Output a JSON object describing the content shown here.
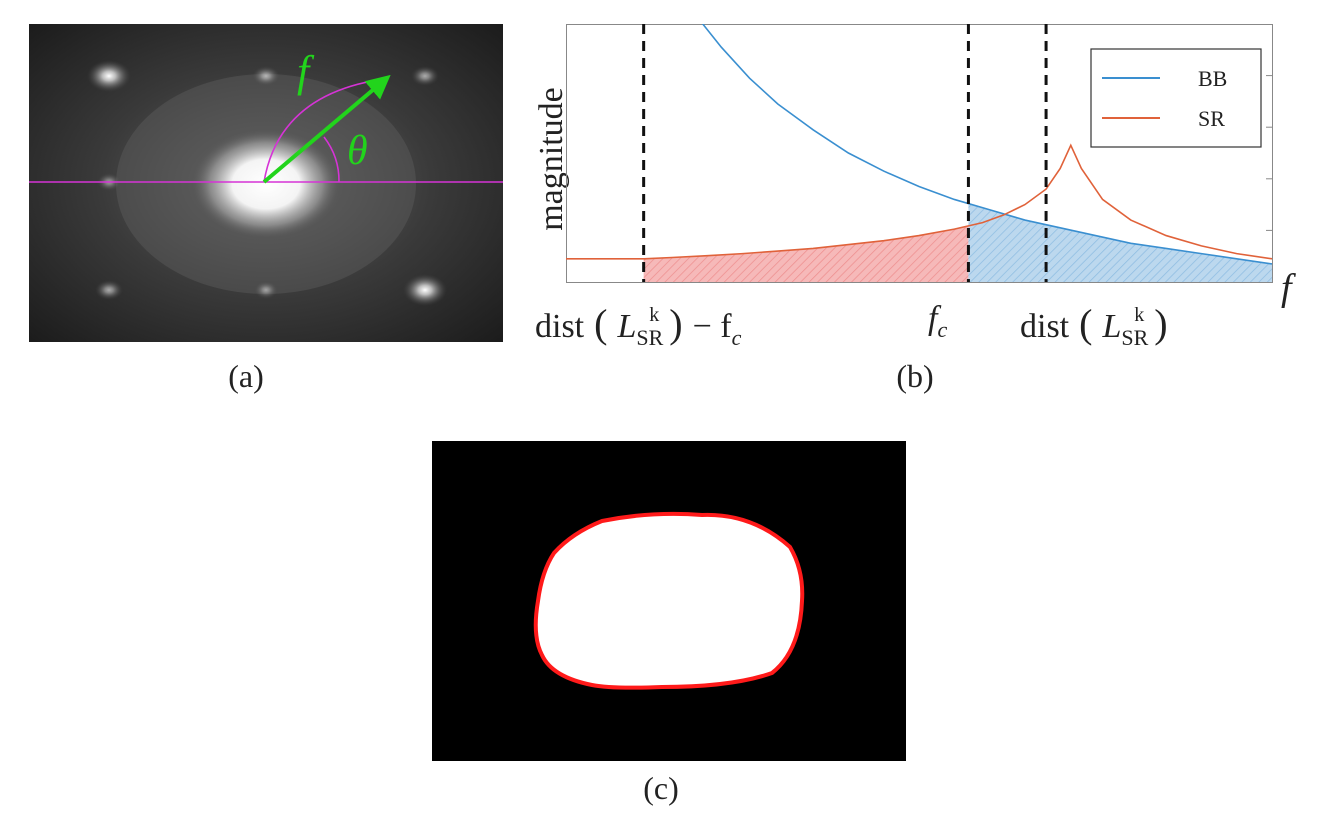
{
  "panels": {
    "a": {
      "caption": "(a)",
      "labels": {
        "frequency": "f",
        "angle": "θ"
      }
    },
    "b": {
      "caption": "(b)",
      "ylabel": "magnitude",
      "xlabel": "f",
      "xtick_left": {
        "prefix": "dist",
        "symbol": "L",
        "subscript": "SR",
        "superscript": "k",
        "suffix": "− f",
        "suffix_sub": "c"
      },
      "xtick_mid": {
        "symbol": "f",
        "subscript": "c"
      },
      "xtick_right": {
        "prefix": "dist",
        "symbol": "L",
        "subscript": "SR",
        "superscript": "k"
      }
    },
    "c": {
      "caption": "(c)"
    }
  },
  "colors": {
    "bb": "#3a8fd0",
    "sr": "#e0623a",
    "magenta": "#d633d6",
    "green": "#22d41c",
    "contour": "#ff1a1a"
  },
  "chart_data": {
    "type": "line",
    "title": "",
    "xlabel": "f",
    "ylabel": "magnitude",
    "xlim": [
      0,
      10
    ],
    "ylim": [
      0,
      10
    ],
    "series": [
      {
        "name": "BB",
        "color": "#3a8fd0",
        "x": [
          1.85,
          2.2,
          2.6,
          3.0,
          3.5,
          4.0,
          4.5,
          5.0,
          5.5,
          6.0,
          6.5,
          7.0,
          7.5,
          8.0,
          8.5,
          9.0,
          9.5,
          10.0
        ],
        "values": [
          10.5,
          9.1,
          7.9,
          6.9,
          5.9,
          5.0,
          4.3,
          3.7,
          3.2,
          2.8,
          2.4,
          2.1,
          1.8,
          1.5,
          1.3,
          1.1,
          0.9,
          0.7
        ]
      },
      {
        "name": "SR",
        "color": "#e0623a",
        "x": [
          0.0,
          1.1,
          1.5,
          2.0,
          2.5,
          3.0,
          3.5,
          4.0,
          4.5,
          5.0,
          5.5,
          5.9,
          6.2,
          6.5,
          6.8,
          7.0,
          7.15,
          7.3,
          7.6,
          8.0,
          8.5,
          9.0,
          9.5,
          10.0
        ],
        "values": [
          0.9,
          0.9,
          0.95,
          1.02,
          1.1,
          1.2,
          1.3,
          1.45,
          1.6,
          1.8,
          2.05,
          2.3,
          2.6,
          3.0,
          3.6,
          4.4,
          5.3,
          4.4,
          3.2,
          2.4,
          1.8,
          1.4,
          1.1,
          0.9
        ]
      }
    ],
    "vlines": [
      1.1,
      5.7,
      6.8
    ],
    "shaded_regions": [
      {
        "series": "SR",
        "from": 1.1,
        "to": 5.7
      },
      {
        "series": "BB",
        "from": 5.7,
        "to": 10.0
      }
    ],
    "legend": {
      "entries": [
        "BB",
        "SR"
      ],
      "position": "top-right"
    }
  }
}
